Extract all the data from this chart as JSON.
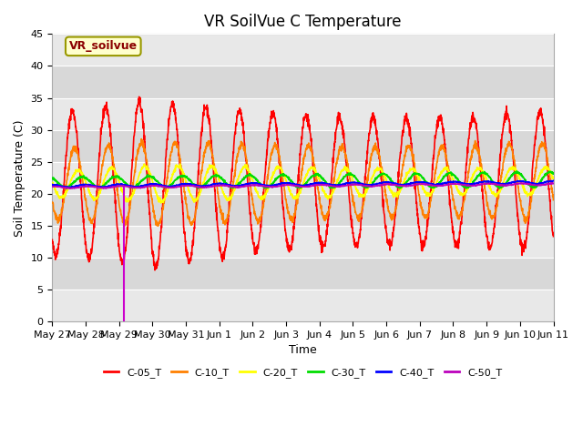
{
  "title": "VR SoilVue C Temperature",
  "xlabel": "Time",
  "ylabel": "Soil Temperature (C)",
  "ylim": [
    0,
    45
  ],
  "series_colors": {
    "C-05_T": "#ff0000",
    "C-10_T": "#ff8000",
    "C-20_T": "#ffff00",
    "C-30_T": "#00dd00",
    "C-40_T": "#0000ff",
    "C-50_T": "#bb00bb"
  },
  "series_order": [
    "C-05_T",
    "C-10_T",
    "C-20_T",
    "C-30_T",
    "C-40_T",
    "C-50_T"
  ],
  "vr_soilvue_label": "VR_soilvue",
  "background_color": "#e0e0e0",
  "title_fontsize": 12,
  "axis_label_fontsize": 9,
  "tick_fontsize": 8,
  "legend_fontsize": 8,
  "tick_days": [
    0,
    1,
    2,
    3,
    4,
    5,
    6,
    7,
    8,
    9,
    10,
    11,
    12,
    13,
    14,
    15
  ],
  "tick_labels": [
    "May 27",
    "May 28",
    "May 29",
    "May 30",
    "May 31",
    "Jun 1",
    "Jun 2",
    "Jun 3",
    "Jun 4",
    "Jun 5",
    "Jun 6",
    "Jun 7",
    "Jun 8",
    "Jun 9",
    "Jun 10",
    "Jun 11"
  ],
  "vline_day": 2.15,
  "vline_color": "#cc00cc",
  "band_colors": [
    "#e8e8e8",
    "#d8d8d8"
  ],
  "band_intervals": [
    0,
    5,
    10,
    15,
    20,
    25,
    30,
    35,
    40,
    45
  ]
}
